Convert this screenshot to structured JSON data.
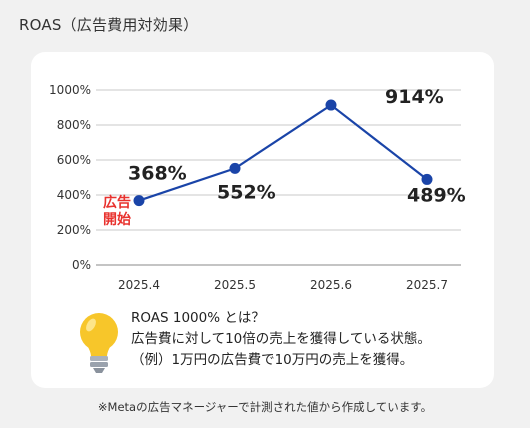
{
  "title": "ROAS（広告費用対効果）",
  "chart_data": {
    "type": "line",
    "categories": [
      "2025.4",
      "2025.5",
      "2025.6",
      "2025.7"
    ],
    "values": [
      368,
      552,
      914,
      489
    ],
    "data_labels": [
      "368%",
      "552%",
      "914%",
      "489%"
    ],
    "yticks": [
      "0%",
      "200%",
      "400%",
      "600%",
      "800%",
      "1000%"
    ],
    "ylim": [
      0,
      1000
    ],
    "grid": true,
    "line_color": "#1a44a8",
    "annotation": {
      "text": "広告\n開始",
      "color": "#e8322e",
      "category": "2025.4"
    }
  },
  "note": {
    "line1": "ROAS 1000% とは？",
    "line2": "広告費に対して10倍の売上を獲得している状態。",
    "line3": "（例）1万円の広告費で10万円の売上を獲得。",
    "icon": "lightbulb-icon"
  },
  "footnote": "※Metaの広告マネージャーで計測された値から作成しています。"
}
